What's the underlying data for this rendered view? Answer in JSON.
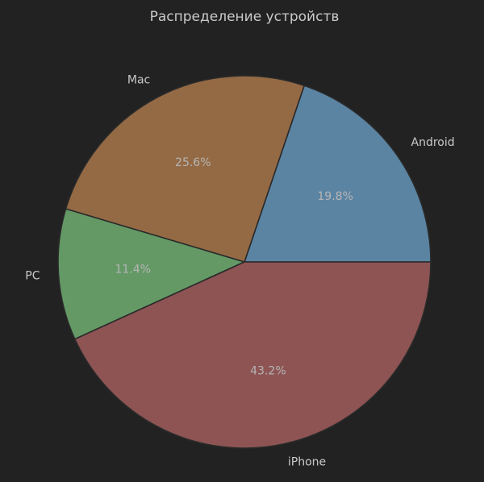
{
  "chart_data": {
    "type": "pie",
    "title": "Распределение устройств",
    "categories": [
      "Android",
      "Mac",
      "PC",
      "iPhone"
    ],
    "values": [
      19.8,
      25.6,
      11.4,
      43.2
    ],
    "value_labels": [
      "19.8%",
      "25.6%",
      "11.4%",
      "43.2%"
    ],
    "colors": [
      "#5b84a3",
      "#946a45",
      "#649966",
      "#8e5454"
    ],
    "start_angle_deg": 0,
    "direction": "counterclockwise",
    "background": "#222222",
    "legend": "none"
  }
}
